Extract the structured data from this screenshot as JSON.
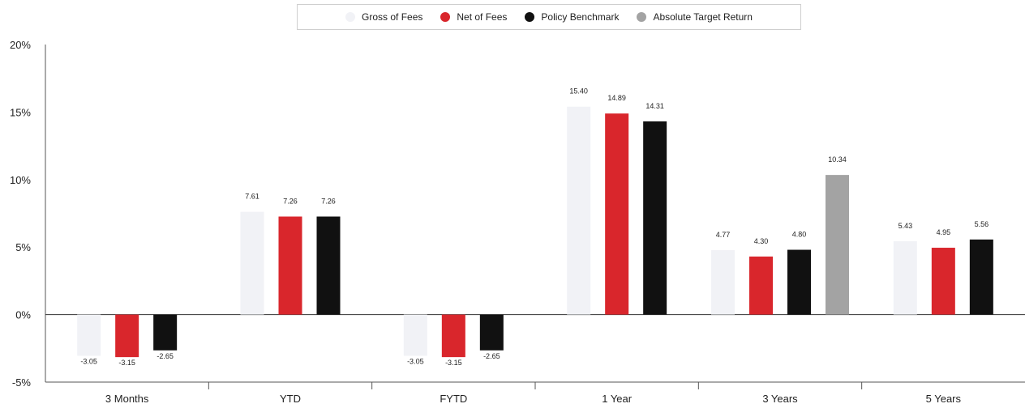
{
  "chart_data": {
    "type": "bar",
    "categories": [
      "3 Months",
      "YTD",
      "FYTD",
      "1 Year",
      "3 Years",
      "5 Years"
    ],
    "series": [
      {
        "name": "Gross of Fees",
        "color": "#f1f2f6",
        "values": [
          -3.05,
          7.61,
          -3.05,
          15.4,
          4.77,
          5.43
        ],
        "labels": [
          "-3.05",
          "7.61",
          "-3.05",
          "15.40",
          "4.77",
          "5.43"
        ]
      },
      {
        "name": "Net of Fees",
        "color": "#d9262c",
        "values": [
          -3.15,
          7.26,
          -3.15,
          14.89,
          4.3,
          4.95
        ],
        "labels": [
          "-3.15",
          "7.26",
          "-3.15",
          "14.89",
          "4.30",
          "4.95"
        ]
      },
      {
        "name": "Policy Benchmark",
        "color": "#111111",
        "values": [
          -2.65,
          7.26,
          -2.65,
          14.31,
          4.8,
          5.56
        ],
        "labels": [
          "-2.65",
          "7.26",
          "-2.65",
          "14.31",
          "4.80",
          "5.56"
        ]
      },
      {
        "name": "Absolute Target Return",
        "color": "#a3a3a3",
        "values": [
          null,
          null,
          null,
          null,
          10.34,
          null
        ],
        "labels": [
          "",
          "",
          "",
          "",
          "10.34",
          ""
        ]
      }
    ],
    "y_ticks": [
      "-5%",
      "0%",
      "5%",
      "10%",
      "15%",
      "20%"
    ],
    "y_tick_values": [
      -5,
      0,
      5,
      10,
      15,
      20
    ],
    "ylim": [
      -5,
      20
    ],
    "legend_position": "top-center",
    "grid": false
  }
}
